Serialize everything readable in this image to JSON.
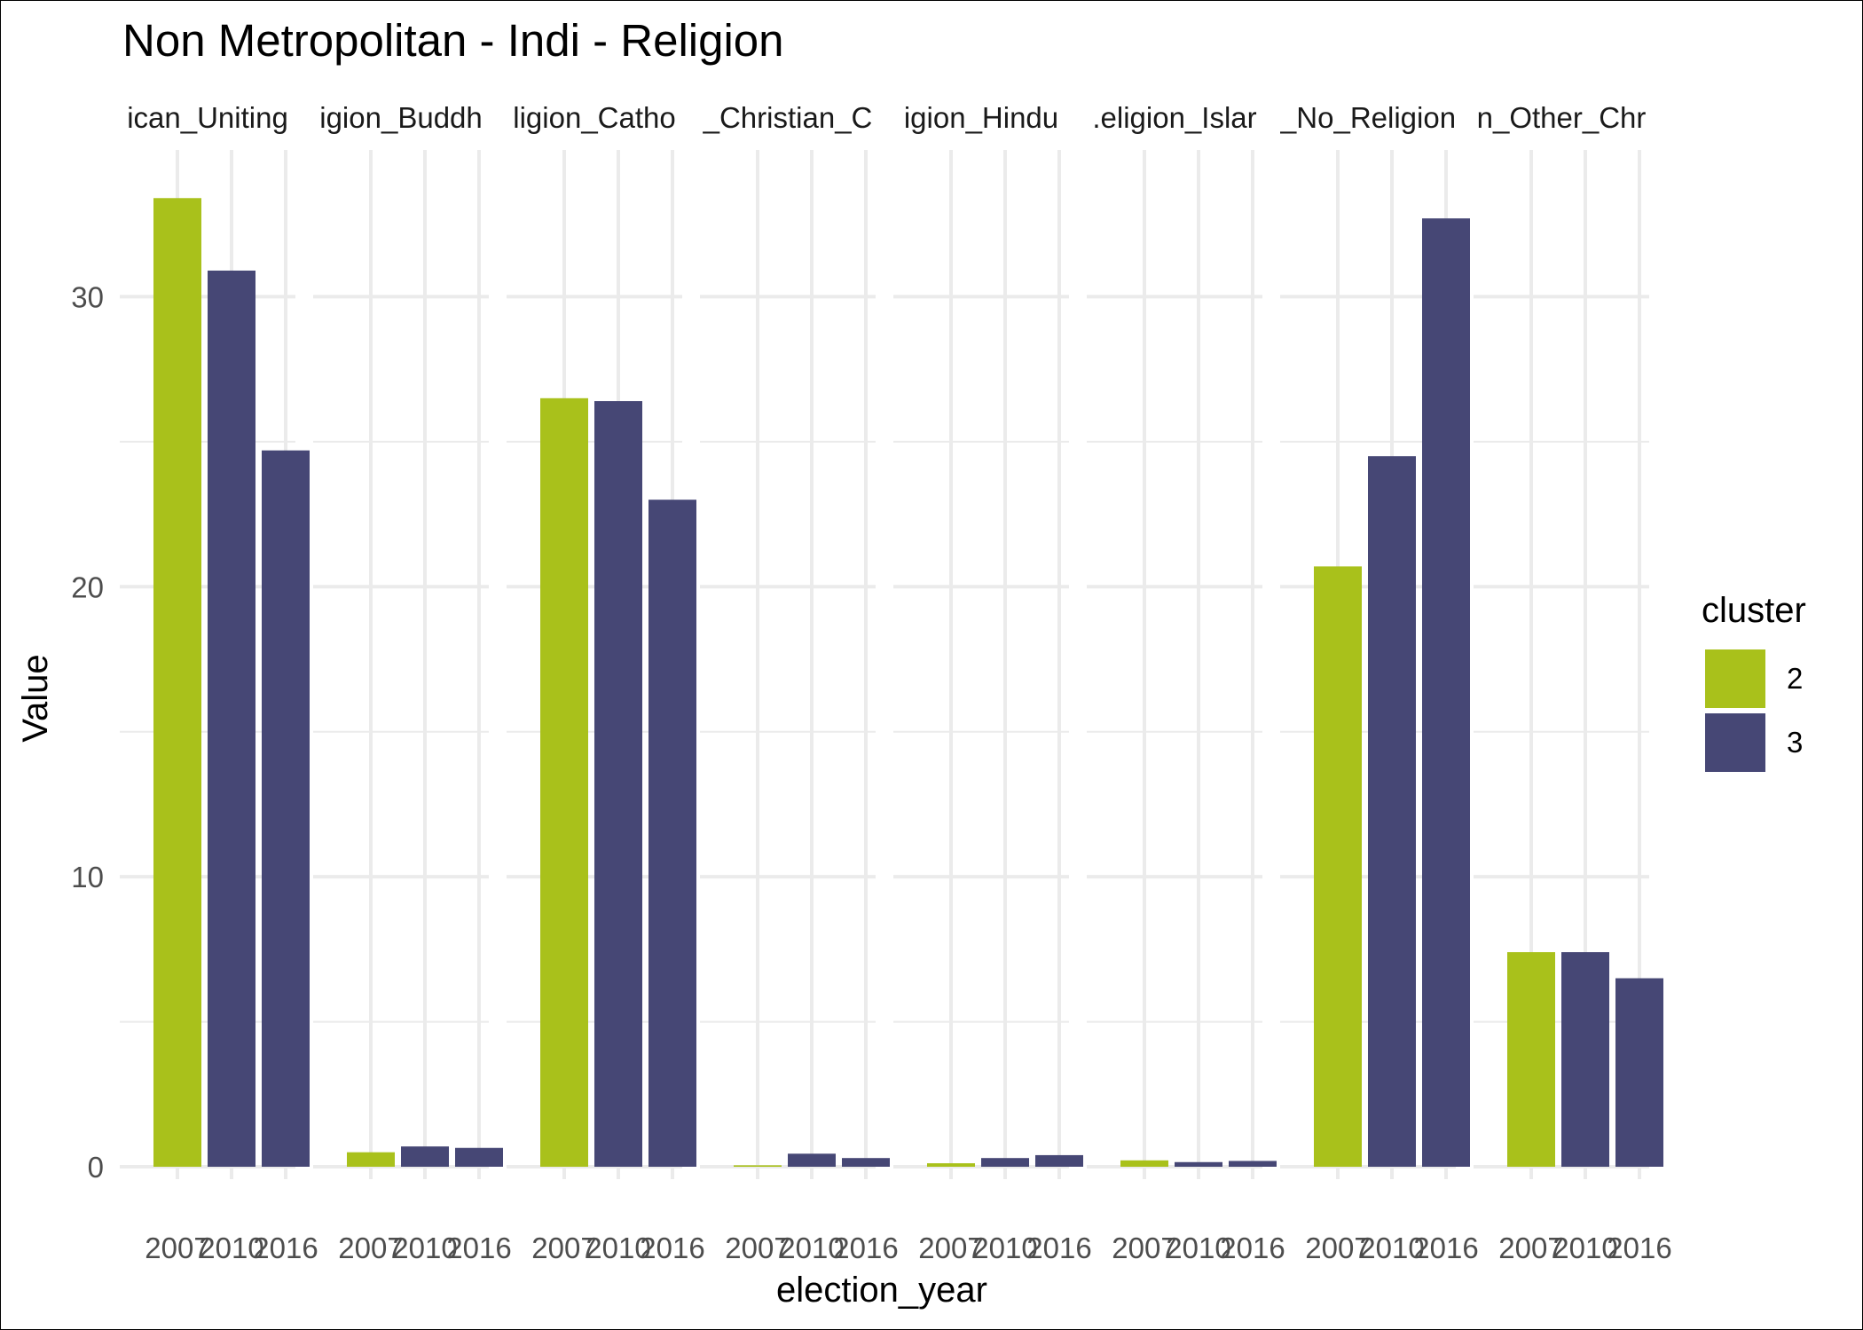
{
  "chart_data": {
    "type": "bar",
    "title": "Non Metropolitan - Indi - Religion",
    "xlabel": "election_year",
    "ylabel": "Value",
    "ylim": [
      0,
      35
    ],
    "yticks": [
      0,
      10,
      20,
      30
    ],
    "grid": true,
    "x_categories": [
      "2007",
      "2010",
      "2016"
    ],
    "panels": [
      {
        "label": "ican_Uniting",
        "values": [
          {
            "x": "2007",
            "y": 33.4,
            "cluster": "2"
          },
          {
            "x": "2010",
            "y": 30.9,
            "cluster": "3"
          },
          {
            "x": "2016",
            "y": 24.7,
            "cluster": "3"
          }
        ]
      },
      {
        "label": "igion_Buddh",
        "values": [
          {
            "x": "2007",
            "y": 0.5,
            "cluster": "2"
          },
          {
            "x": "2010",
            "y": 0.7,
            "cluster": "3"
          },
          {
            "x": "2016",
            "y": 0.65,
            "cluster": "3"
          }
        ]
      },
      {
        "label": "ligion_Catho",
        "values": [
          {
            "x": "2007",
            "y": 26.5,
            "cluster": "2"
          },
          {
            "x": "2010",
            "y": 26.4,
            "cluster": "3"
          },
          {
            "x": "2016",
            "y": 23.0,
            "cluster": "3"
          }
        ]
      },
      {
        "label": "_Christian_C",
        "values": [
          {
            "x": "2007",
            "y": 0.05,
            "cluster": "2"
          },
          {
            "x": "2010",
            "y": 0.45,
            "cluster": "3"
          },
          {
            "x": "2016",
            "y": 0.3,
            "cluster": "3"
          }
        ]
      },
      {
        "label": "igion_Hindu",
        "values": [
          {
            "x": "2007",
            "y": 0.12,
            "cluster": "2"
          },
          {
            "x": "2010",
            "y": 0.3,
            "cluster": "3"
          },
          {
            "x": "2016",
            "y": 0.4,
            "cluster": "3"
          }
        ]
      },
      {
        "label": ".eligion_Islar",
        "values": [
          {
            "x": "2007",
            "y": 0.22,
            "cluster": "2"
          },
          {
            "x": "2010",
            "y": 0.16,
            "cluster": "3"
          },
          {
            "x": "2016",
            "y": 0.2,
            "cluster": "3"
          }
        ]
      },
      {
        "label": "_No_Religion",
        "values": [
          {
            "x": "2007",
            "y": 20.7,
            "cluster": "2"
          },
          {
            "x": "2010",
            "y": 24.5,
            "cluster": "3"
          },
          {
            "x": "2016",
            "y": 32.7,
            "cluster": "3"
          }
        ]
      },
      {
        "label": "n_Other_Chr",
        "values": [
          {
            "x": "2007",
            "y": 7.4,
            "cluster": "2"
          },
          {
            "x": "2010",
            "y": 7.4,
            "cluster": "3"
          },
          {
            "x": "2016",
            "y": 6.5,
            "cluster": "3"
          }
        ]
      }
    ],
    "legend": {
      "title": "cluster",
      "placement": "right",
      "items": [
        {
          "label": "2",
          "color": "#a9c11b"
        },
        {
          "label": "3",
          "color": "#464775"
        }
      ]
    }
  }
}
